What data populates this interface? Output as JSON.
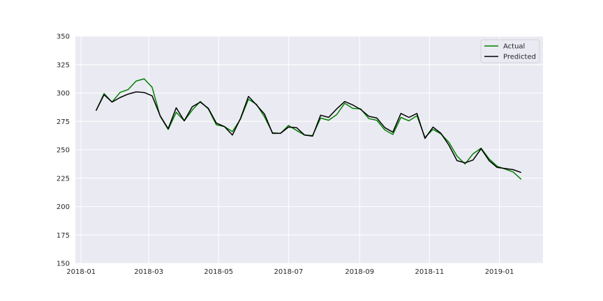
{
  "chart_data": {
    "type": "line",
    "x_start": "2018-01-14",
    "x_step_days": 7,
    "x": [
      "2018-01-14",
      "2018-01-21",
      "2018-01-28",
      "2018-02-04",
      "2018-02-11",
      "2018-02-18",
      "2018-02-25",
      "2018-03-04",
      "2018-03-11",
      "2018-03-18",
      "2018-03-25",
      "2018-04-01",
      "2018-04-08",
      "2018-04-15",
      "2018-04-22",
      "2018-04-29",
      "2018-05-06",
      "2018-05-13",
      "2018-05-20",
      "2018-05-27",
      "2018-06-03",
      "2018-06-10",
      "2018-06-17",
      "2018-06-24",
      "2018-07-01",
      "2018-07-08",
      "2018-07-15",
      "2018-07-22",
      "2018-07-29",
      "2018-08-05",
      "2018-08-12",
      "2018-08-19",
      "2018-08-26",
      "2018-09-02",
      "2018-09-09",
      "2018-09-16",
      "2018-09-23",
      "2018-09-30",
      "2018-10-07",
      "2018-10-14",
      "2018-10-21",
      "2018-10-28",
      "2018-11-04",
      "2018-11-11",
      "2018-11-18",
      "2018-11-25",
      "2018-12-02",
      "2018-12-09",
      "2018-12-16",
      "2018-12-23",
      "2018-12-30",
      "2019-01-06",
      "2019-01-13",
      "2019-01-20"
    ],
    "series": [
      {
        "name": "Actual",
        "color": "#008000",
        "values": [
          284.5,
          299.5,
          292,
          300.5,
          303,
          310.5,
          312.5,
          305,
          279.5,
          268,
          283,
          275.5,
          285,
          292.5,
          286,
          272,
          270.5,
          266,
          277,
          294.5,
          290,
          279,
          265,
          264.5,
          271.5,
          267,
          263,
          262.5,
          278,
          276,
          281,
          291,
          286.5,
          286,
          277.5,
          276,
          267.5,
          263.5,
          278.5,
          275.5,
          280,
          261,
          268,
          264,
          256.5,
          244.5,
          237.5,
          246.5,
          251.5,
          242,
          235.5,
          233,
          230.5,
          224
        ]
      },
      {
        "name": "Predicted",
        "color": "#000000",
        "values": [
          284.5,
          298.5,
          292,
          296,
          299,
          301,
          300.5,
          297.5,
          280,
          268.5,
          287,
          275.5,
          288,
          292,
          286.5,
          273.5,
          270.5,
          263,
          277.5,
          297,
          289.5,
          281.5,
          264.5,
          264.5,
          270,
          269.5,
          263,
          262,
          280.5,
          278.5,
          286,
          292.5,
          289.5,
          285.5,
          279.5,
          278,
          269.5,
          265.5,
          282,
          278.5,
          282,
          260,
          270,
          264.5,
          254,
          240.5,
          238.5,
          241,
          251,
          240.5,
          234.5,
          233.5,
          232.5,
          230
        ]
      }
    ],
    "x_ticks": [
      "2018-01",
      "2018-03",
      "2018-05",
      "2018-07",
      "2018-09",
      "2018-11",
      "2019-01"
    ],
    "y_ticks": [
      150,
      175,
      200,
      225,
      250,
      275,
      300,
      325,
      350
    ],
    "ylim": [
      150,
      350
    ],
    "xlim": [
      "2017-12-27",
      "2019-02-08"
    ],
    "grid": true,
    "legend_position": "top-right",
    "title": "",
    "xlabel": "",
    "ylabel": ""
  }
}
